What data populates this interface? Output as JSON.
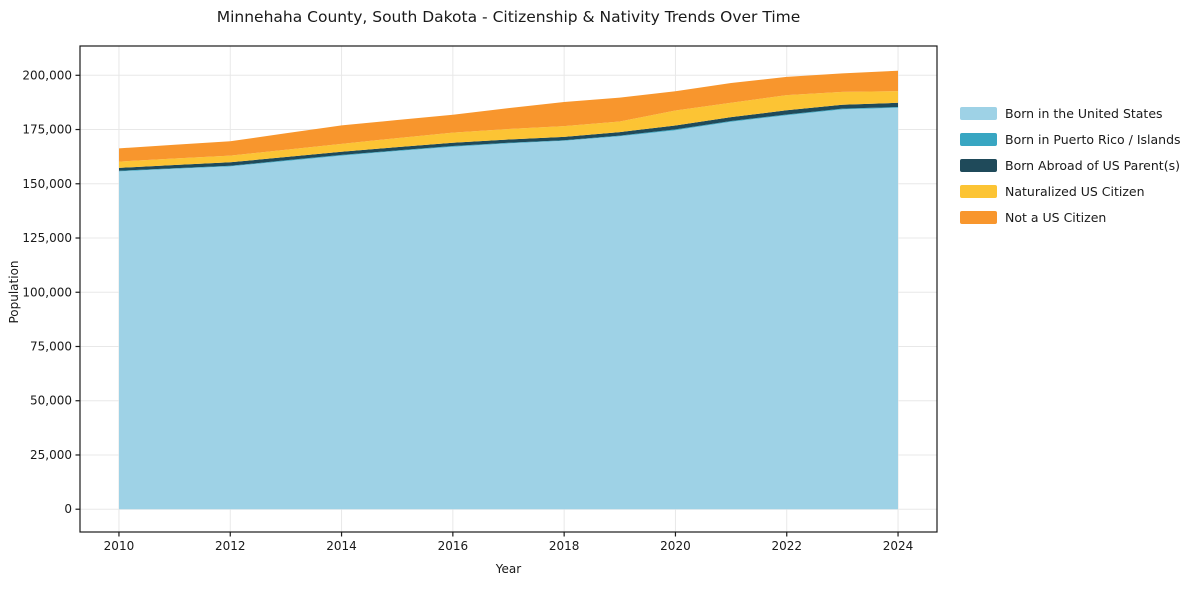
{
  "chart_data": {
    "type": "area",
    "stacked": true,
    "title": "Minnehaha County, South Dakota - Citizenship & Nativity Trends Over Time",
    "xlabel": "Year",
    "ylabel": "Population",
    "x": [
      2010,
      2011,
      2012,
      2013,
      2014,
      2015,
      2016,
      2017,
      2018,
      2019,
      2020,
      2021,
      2022,
      2023,
      2024
    ],
    "series": [
      {
        "name": "Born in the United States",
        "color": "#9ed2e6",
        "values": [
          155700,
          156900,
          158000,
          160500,
          163000,
          165100,
          167100,
          168600,
          169800,
          171900,
          174700,
          178600,
          181600,
          184300,
          185000
        ]
      },
      {
        "name": "Born in Puerto Rico / Islands",
        "color": "#38a6c2",
        "values": [
          300,
          300,
          300,
          300,
          300,
          300,
          300,
          300,
          300,
          300,
          350,
          350,
          350,
          350,
          400
        ]
      },
      {
        "name": "Born Abroad of US Parent(s)",
        "color": "#1f4a5a",
        "values": [
          1300,
          1450,
          1600,
          1550,
          1500,
          1500,
          1500,
          1500,
          1500,
          1600,
          1800,
          1800,
          1900,
          1800,
          1900
        ]
      },
      {
        "name": "Naturalized US Citizen",
        "color": "#fcc434",
        "values": [
          2900,
          3000,
          3100,
          3350,
          3600,
          4150,
          4700,
          4850,
          5000,
          4900,
          6900,
          6600,
          7000,
          5900,
          5400
        ]
      },
      {
        "name": "Not a US Citizen",
        "color": "#f8962d",
        "values": [
          6100,
          6350,
          6600,
          7550,
          8500,
          8350,
          8200,
          9650,
          11100,
          11000,
          8900,
          9100,
          8400,
          8500,
          9400
        ]
      }
    ],
    "xticks": {
      "values": [
        2010,
        2012,
        2014,
        2016,
        2018,
        2020,
        2022,
        2024
      ],
      "labels": [
        "2010",
        "2012",
        "2014",
        "2016",
        "2018",
        "2020",
        "2022",
        "2024"
      ]
    },
    "yticks": {
      "values": [
        0,
        25000,
        50000,
        75000,
        100000,
        125000,
        150000,
        175000,
        200000
      ],
      "labels": [
        "0",
        "25,000",
        "50,000",
        "75,000",
        "100,000",
        "125,000",
        "150,000",
        "175,000",
        "200,000"
      ]
    },
    "xlim": [
      2009.3,
      2024.7
    ],
    "ylim": [
      -10500,
      213500
    ],
    "grid": true,
    "grid_color": "#e8e8e8",
    "spine_color": "#1a1a1a",
    "legend_position": "right"
  }
}
